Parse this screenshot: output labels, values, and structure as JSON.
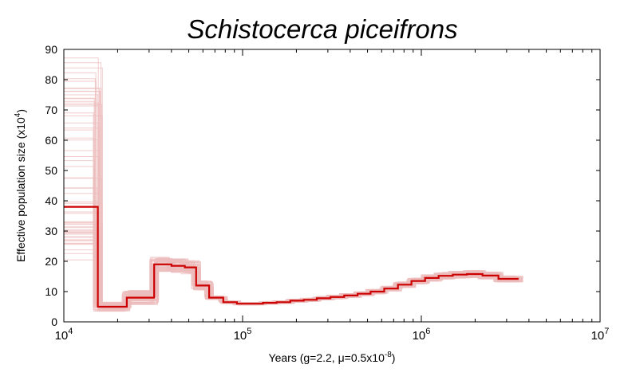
{
  "colors": {
    "median": "#cc0000",
    "bootstrap": "#ecbcbc",
    "frame": "#000000"
  },
  "chart_data": {
    "type": "line",
    "title": "Schistocerca piceifrons",
    "xlabel": {
      "main": "Years (g=2.2, ",
      "mu": "μ",
      "rest": "=0.5x10",
      "sup": "-8",
      "close": ")"
    },
    "ylabel": {
      "main": "Effective population size (x10",
      "sup": "4",
      "close": ")"
    },
    "x_scale": "log",
    "xlim": [
      10000,
      10000000
    ],
    "ylim": [
      0,
      90
    ],
    "x_ticks": [
      {
        "value": 10000,
        "base": "10",
        "exp": "4"
      },
      {
        "value": 100000,
        "base": "10",
        "exp": "5"
      },
      {
        "value": 1000000,
        "base": "10",
        "exp": "6"
      },
      {
        "value": 10000000,
        "base": "10",
        "exp": "7"
      }
    ],
    "y_ticks": [
      0,
      10,
      20,
      30,
      40,
      50,
      60,
      70,
      80,
      90
    ],
    "grid": false,
    "series": [
      {
        "style": "step",
        "x": [
          10000,
          15500,
          22500,
          32000,
          40000,
          47500,
          55000,
          65000,
          78000,
          93000,
          110000,
          130000,
          155000,
          185000,
          220000,
          260000,
          310000,
          370000,
          440000,
          520000,
          620000,
          740000,
          880000,
          1050000,
          1250000,
          1500000,
          1800000,
          2200000,
          2700000,
          3500000
        ],
        "y": [
          38,
          5,
          8,
          19,
          18.5,
          18,
          12,
          8,
          6.5,
          6,
          6,
          6.3,
          6.5,
          7,
          7.3,
          7.8,
          8.2,
          8.7,
          9.3,
          10,
          11,
          12.3,
          13.5,
          14.5,
          15.2,
          15.6,
          15.8,
          15.3,
          14.2,
          14.2
        ]
      }
    ]
  }
}
